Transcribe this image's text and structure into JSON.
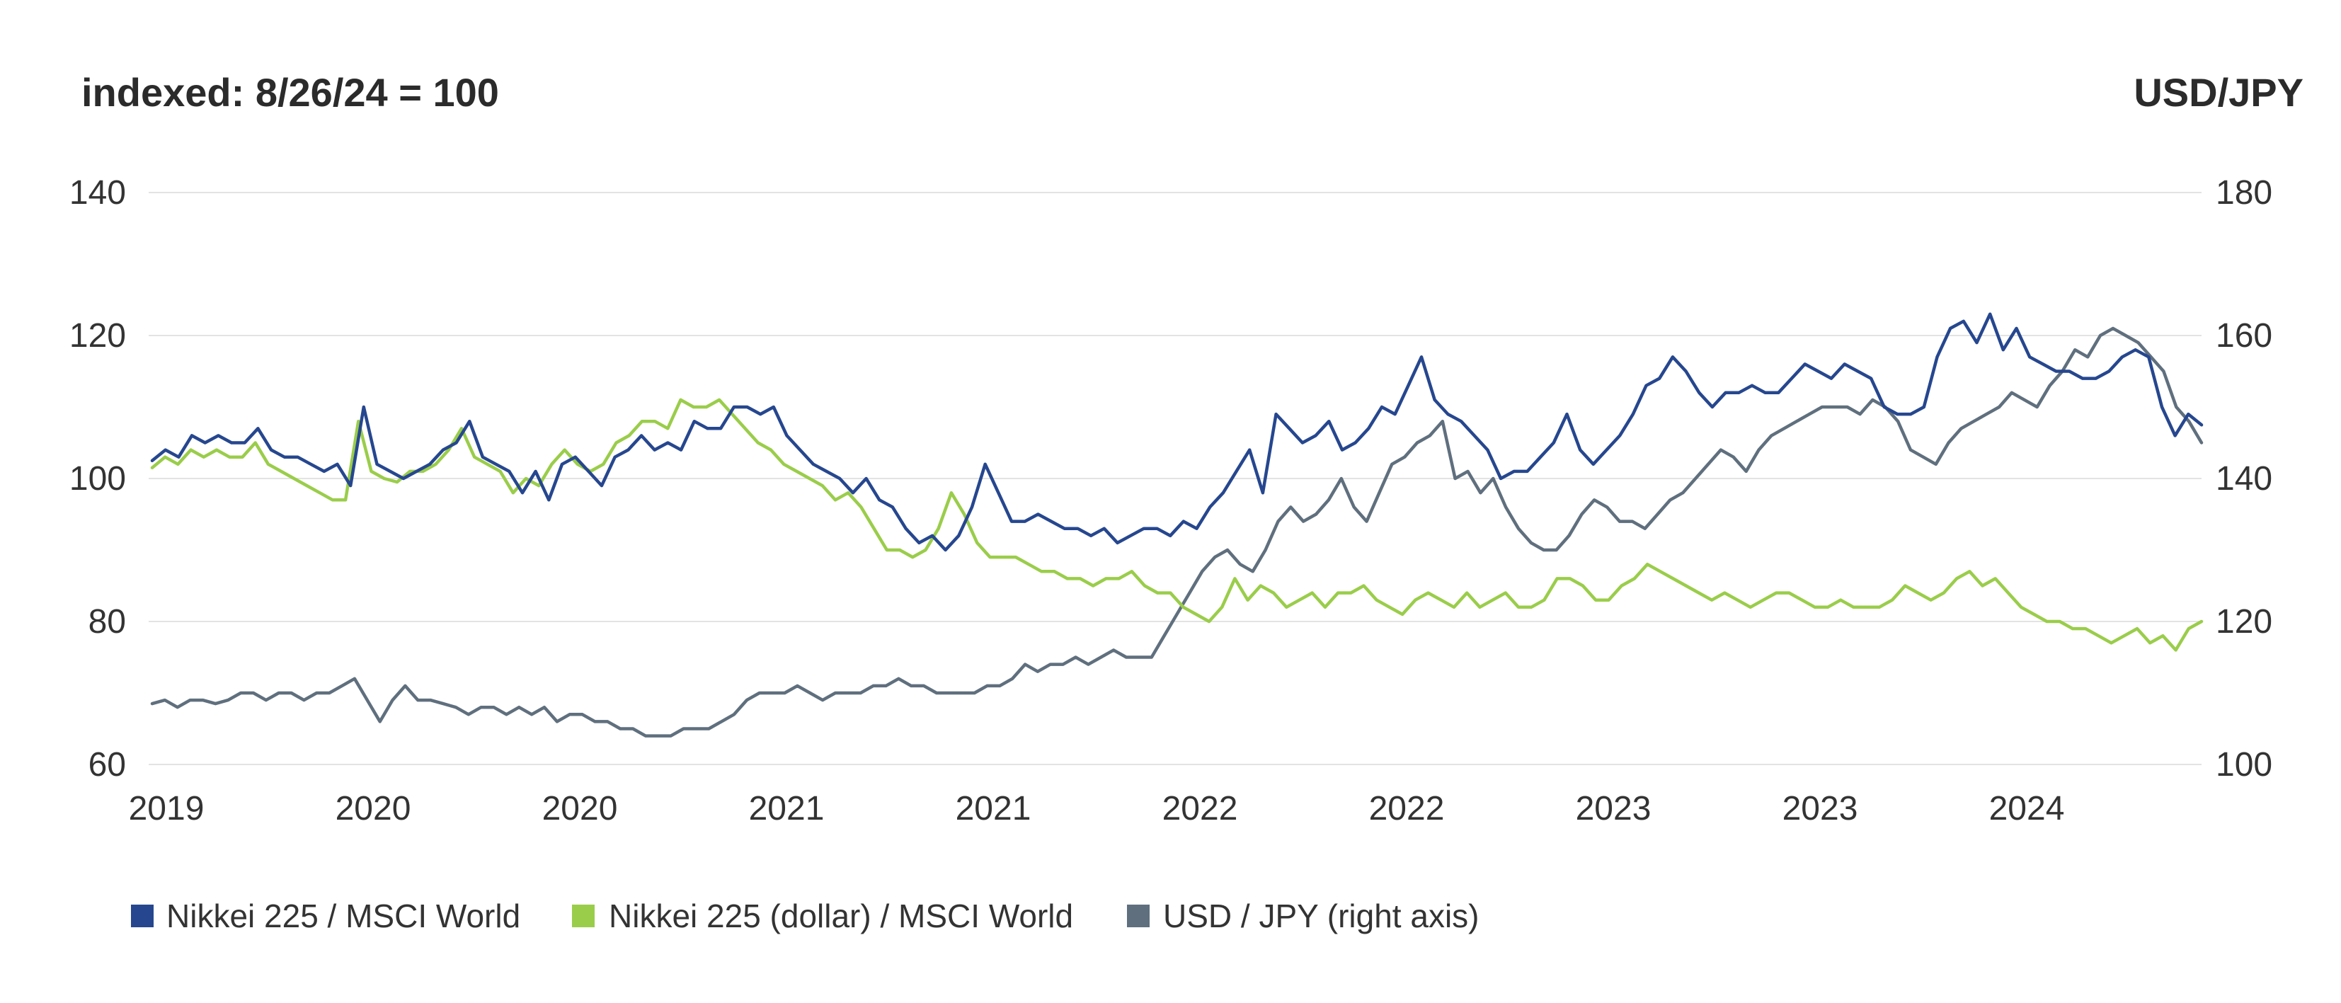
{
  "chart_data": {
    "type": "line",
    "title": "",
    "left_axis_label": "indexed: 8/26/24 = 100",
    "right_axis_label": "USD/JPY",
    "left_ylim": [
      60,
      140
    ],
    "left_ticks": [
      60,
      80,
      100,
      120,
      140
    ],
    "right_ylim": [
      100,
      180
    ],
    "right_ticks": [
      100,
      120,
      140,
      160,
      180
    ],
    "x_tick_labels": [
      "2019",
      "2020",
      "2020",
      "2021",
      "2021",
      "2022",
      "2022",
      "2023",
      "2023",
      "2024"
    ],
    "grid": true,
    "legend_position": "bottom-left",
    "series": [
      {
        "name": "Nikkei 225 / MSCI World",
        "axis": "left",
        "color": "#26478f",
        "values": [
          102.5,
          104,
          103,
          106,
          105,
          106,
          105,
          105,
          107,
          104,
          103,
          103,
          102,
          101,
          102,
          99,
          110,
          102,
          101,
          100,
          101,
          102,
          104,
          105,
          108,
          103,
          102,
          101,
          98,
          101,
          97,
          102,
          103,
          101,
          99,
          103,
          104,
          106,
          104,
          105,
          104,
          108,
          107,
          107,
          110,
          110,
          109,
          110,
          106,
          104,
          102,
          101,
          100,
          98,
          100,
          97,
          96,
          93,
          91,
          92,
          90,
          92,
          96,
          102,
          98,
          94,
          94,
          95,
          94,
          93,
          93,
          92,
          93,
          91,
          92,
          93,
          93,
          92,
          94,
          93,
          96,
          98,
          101,
          104,
          98,
          109,
          107,
          105,
          106,
          108,
          104,
          105,
          107,
          110,
          109,
          113,
          117,
          111,
          109,
          108,
          106,
          104,
          100,
          101,
          101,
          103,
          105,
          109,
          104,
          102,
          104,
          106,
          109,
          113,
          114,
          117,
          115,
          112,
          110,
          112,
          112,
          113,
          112,
          112,
          114,
          116,
          115,
          114,
          116,
          115,
          114,
          110,
          109,
          109,
          110,
          117,
          121,
          122,
          119,
          123,
          118,
          121,
          117,
          116,
          115,
          115,
          114,
          114,
          115,
          117,
          118,
          117,
          110,
          106,
          109,
          107.5
        ]
      },
      {
        "name": "Nikkei 225 (dollar) / MSCI World",
        "axis": "left",
        "color": "#9acd4a",
        "values": [
          101.5,
          103,
          102,
          104,
          103,
          104,
          103,
          103,
          105,
          102,
          101,
          100,
          99,
          98,
          97,
          97,
          108,
          101,
          100,
          99.5,
          101,
          101,
          102,
          104,
          107,
          103,
          102,
          101,
          98,
          100,
          99,
          102,
          104,
          102,
          101,
          102,
          105,
          106,
          108,
          108,
          107,
          111,
          110,
          110,
          111,
          109,
          107,
          105,
          104,
          102,
          101,
          100,
          99,
          97,
          98,
          96,
          93,
          90,
          90,
          89,
          90,
          93,
          98,
          95,
          91,
          89,
          89,
          89,
          88,
          87,
          87,
          86,
          86,
          85,
          86,
          86,
          87,
          85,
          84,
          84,
          82,
          81,
          80,
          82,
          86,
          83,
          85,
          84,
          82,
          83,
          84,
          82,
          84,
          84,
          85,
          83,
          82,
          81,
          83,
          84,
          83,
          82,
          84,
          82,
          83,
          84,
          82,
          82,
          83,
          86,
          86,
          85,
          83,
          83,
          85,
          86,
          88,
          87,
          86,
          85,
          84,
          83,
          84,
          83,
          82,
          83,
          84,
          84,
          83,
          82,
          82,
          83,
          82,
          82,
          82,
          83,
          85,
          84,
          83,
          84,
          86,
          87,
          85,
          86,
          84,
          82,
          81,
          80,
          80,
          79,
          79,
          78,
          77,
          78,
          79,
          77,
          78,
          76,
          79,
          80
        ]
      },
      {
        "name": "USD / JPY (right axis)",
        "axis": "right",
        "color": "#5f6f7e",
        "values": [
          108.5,
          109,
          108,
          109,
          109,
          108.5,
          109,
          110,
          110,
          109,
          110,
          110,
          109,
          110,
          110,
          111,
          112,
          109,
          106,
          109,
          111,
          109,
          109,
          108.5,
          108,
          107,
          108,
          108,
          107,
          108,
          107,
          108,
          106,
          107,
          107,
          106,
          106,
          105,
          105,
          104,
          104,
          104,
          105,
          105,
          105,
          106,
          107,
          109,
          110,
          110,
          110,
          111,
          110,
          109,
          110,
          110,
          110,
          111,
          111,
          112,
          111,
          111,
          110,
          110,
          110,
          110,
          111,
          111,
          112,
          114,
          113,
          114,
          114,
          115,
          114,
          115,
          116,
          115,
          115,
          115,
          118,
          121,
          124,
          127,
          129,
          130,
          128,
          127,
          130,
          134,
          136,
          134,
          135,
          137,
          140,
          136,
          134,
          138,
          142,
          143,
          145,
          146,
          148,
          140,
          141,
          138,
          140,
          136,
          133,
          131,
          130,
          130,
          132,
          135,
          137,
          136,
          134,
          134,
          133,
          135,
          137,
          138,
          140,
          142,
          144,
          143,
          141,
          144,
          146,
          147,
          148,
          149,
          150,
          150,
          150,
          149,
          151,
          150,
          148,
          144,
          143,
          142,
          145,
          147,
          148,
          149,
          150,
          152,
          151,
          150,
          153,
          155,
          158,
          157,
          160,
          161,
          160,
          159,
          157,
          155,
          150,
          148,
          145
        ]
      }
    ]
  },
  "legend": {
    "items": [
      {
        "label": "Nikkei 225 / MSCI World",
        "color": "#26478f"
      },
      {
        "label": "Nikkei 225 (dollar) / MSCI World",
        "color": "#9acd4a"
      },
      {
        "label": "USD / JPY (right axis)",
        "color": "#5f6f7e"
      }
    ]
  }
}
